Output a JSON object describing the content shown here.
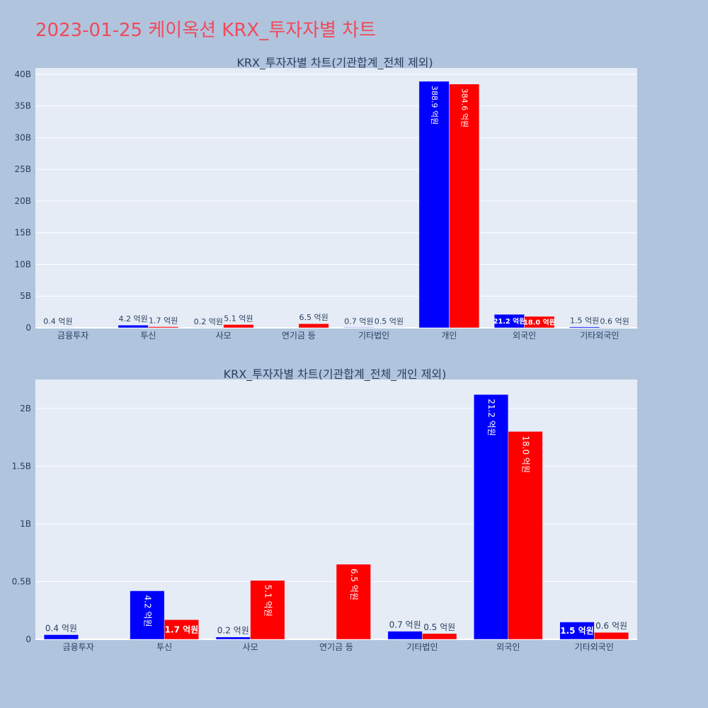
{
  "page": {
    "title": "2023-01-25 케이옥션 KRX_투자자별 차트",
    "background": "#b0c4de",
    "title_color": "#ef4a5a"
  },
  "chart_data": [
    {
      "type": "bar",
      "title": "KRX_투자자별 차트(기관합계_전체 제외)",
      "categories": [
        "금융투자",
        "투신",
        "사모",
        "연기금 등",
        "기타법인",
        "개인",
        "외국인",
        "기타외국인"
      ],
      "series": [
        {
          "color": "#0000ff",
          "values": [
            40000000,
            420000000,
            20000000,
            0,
            70000000,
            38890000000,
            2120000000,
            150000000
          ],
          "labels": [
            "0.4 억원",
            "4.2 억원",
            "0.2 억원",
            "",
            "0.7 억원",
            "388.9 억원",
            "21.2 억원",
            "1.5 억원"
          ]
        },
        {
          "color": "#ff0000",
          "values": [
            0,
            170000000,
            510000000,
            650000000,
            50000000,
            38460000000,
            1800000000,
            60000000
          ],
          "labels": [
            "",
            "1.7 억원",
            "5.1 억원",
            "6.5 억원",
            "0.5 억원",
            "384.6 억원",
            "18.0 억원",
            "0.6 억원"
          ]
        }
      ],
      "ylim": [
        0,
        41000000000
      ],
      "yticks": [
        0,
        5000000000,
        10000000000,
        15000000000,
        20000000000,
        25000000000,
        30000000000,
        35000000000,
        40000000000
      ],
      "ytick_labels": [
        "0",
        "5B",
        "10B",
        "15B",
        "20B",
        "25B",
        "30B",
        "35B",
        "40B"
      ],
      "plot_bg": "#e5ecf6",
      "grid": true
    },
    {
      "type": "bar",
      "title": "KRX_투자자별 차트(기관합계_전체_개인 제외)",
      "categories": [
        "금융투자",
        "투신",
        "사모",
        "연기금 등",
        "기타법인",
        "외국인",
        "기타외국인"
      ],
      "series": [
        {
          "color": "#0000ff",
          "values": [
            40000000,
            420000000,
            20000000,
            0,
            70000000,
            2120000000,
            150000000
          ],
          "labels": [
            "0.4 억원",
            "4.2 억원",
            "0.2 억원",
            "",
            "0.7 억원",
            "21.2 억원",
            "1.5 억원"
          ]
        },
        {
          "color": "#ff0000",
          "values": [
            0,
            170000000,
            510000000,
            650000000,
            50000000,
            1800000000,
            60000000
          ],
          "labels": [
            "",
            "1.7 억원",
            "5.1 억원",
            "6.5 억원",
            "0.5 억원",
            "18.0 억원",
            "0.6 억원"
          ]
        }
      ],
      "ylim": [
        0,
        2250000000
      ],
      "yticks": [
        0,
        500000000,
        1000000000,
        1500000000,
        2000000000
      ],
      "ytick_labels": [
        "0",
        "0.5B",
        "1B",
        "1.5B",
        "2B"
      ],
      "plot_bg": "#e5ecf6",
      "grid": true
    }
  ]
}
